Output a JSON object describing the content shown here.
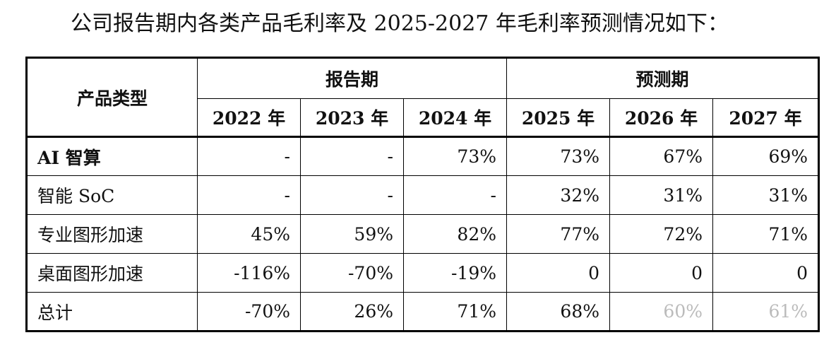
{
  "caption": "公司报告期内各类产品毛利率及 2025-2027 年毛利率预测情况如下：",
  "table": {
    "row_header": "产品类型",
    "groups": [
      "报告期",
      "预测期"
    ],
    "years": [
      "2022 年",
      "2023 年",
      "2024 年",
      "2025 年",
      "2026 年",
      "2027 年"
    ],
    "rows": [
      {
        "name_bold": "AI",
        "name_rest": " 智算",
        "values": [
          "-",
          "-",
          "73%",
          "73%",
          "67%",
          "69%"
        ]
      },
      {
        "name_bold": "",
        "name_rest": "智能 SoC",
        "values": [
          "-",
          "-",
          "-",
          "32%",
          "31%",
          "31%"
        ]
      },
      {
        "name_bold": "",
        "name_rest": "专业图形加速",
        "values": [
          "45%",
          "59%",
          "82%",
          "77%",
          "72%",
          "71%"
        ]
      },
      {
        "name_bold": "",
        "name_rest": "桌面图形加速",
        "values": [
          "-116%",
          "-70%",
          "-19%",
          "0",
          "0",
          "0"
        ]
      },
      {
        "name_bold": "",
        "name_rest": "总计",
        "values": [
          "-70%",
          "26%",
          "71%",
          "68%",
          "60%",
          "61%"
        ]
      }
    ]
  }
}
